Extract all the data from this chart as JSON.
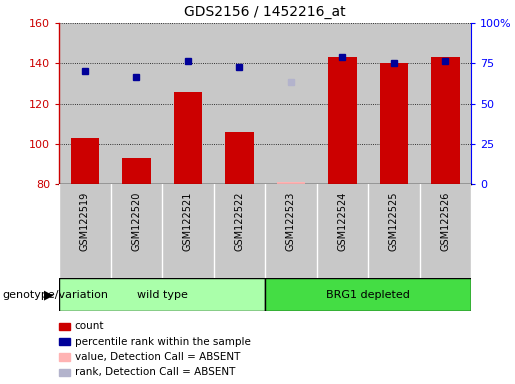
{
  "title": "GDS2156 / 1452216_at",
  "samples": [
    "GSM122519",
    "GSM122520",
    "GSM122521",
    "GSM122522",
    "GSM122523",
    "GSM122524",
    "GSM122525",
    "GSM122526"
  ],
  "bar_values": [
    103,
    93,
    126,
    106,
    null,
    143,
    140,
    143
  ],
  "bar_absent": [
    null,
    null,
    null,
    null,
    81,
    null,
    null,
    null
  ],
  "dot_values": [
    136,
    133,
    141,
    138,
    null,
    143,
    140,
    141
  ],
  "dot_absent": [
    null,
    null,
    null,
    null,
    131,
    null,
    null,
    null
  ],
  "ylim_left": [
    80,
    160
  ],
  "ylim_right": [
    0,
    100
  ],
  "yticks_left": [
    80,
    100,
    120,
    140,
    160
  ],
  "yticks_right": [
    0,
    25,
    50,
    75,
    100
  ],
  "ytick_labels_right": [
    "0",
    "25",
    "50",
    "75",
    "100%"
  ],
  "bar_color": "#cc0000",
  "bar_absent_color": "#ffb3b3",
  "dot_color": "#000099",
  "dot_absent_color": "#b3b3cc",
  "grid_color": "#000000",
  "col_bg_color": "#c8c8c8",
  "plot_bg": "#ffffff",
  "group1_label": "wild type",
  "group2_label": "BRG1 depleted",
  "group1_color": "#aaffaa",
  "group2_color": "#44dd44",
  "genotype_label": "genotype/variation",
  "legend_labels": [
    "count",
    "percentile rank within the sample",
    "value, Detection Call = ABSENT",
    "rank, Detection Call = ABSENT"
  ],
  "legend_colors": [
    "#cc0000",
    "#000099",
    "#ffb3b3",
    "#b3b3cc"
  ]
}
